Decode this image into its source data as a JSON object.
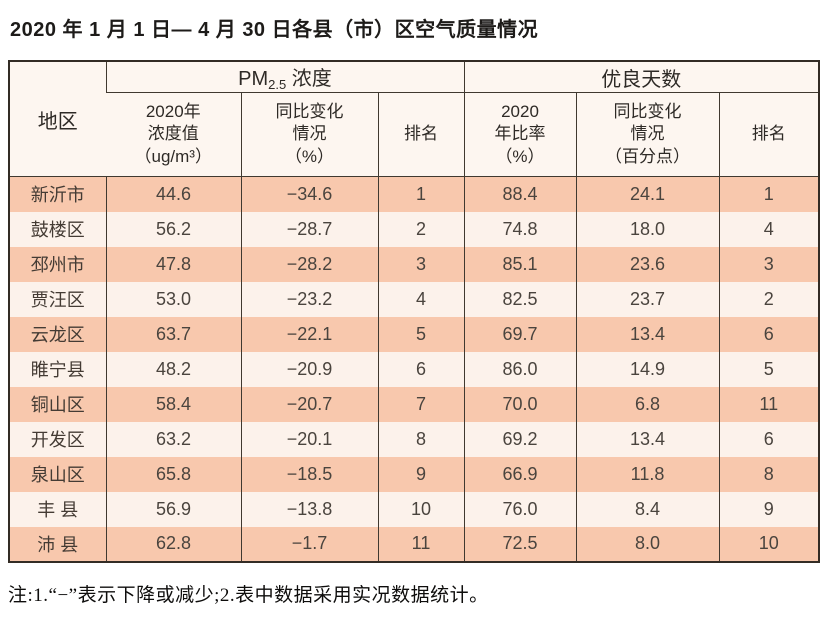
{
  "page": {
    "title": "2020 年 1 月 1 日— 4 月 30 日各县（市）区空气质量情况",
    "footnote": "注:1.“−”表示下降或减少;2.表中数据采用实况数据统计。"
  },
  "colors": {
    "row_odd": "#f8c8ad",
    "row_even": "#fcf2eb",
    "header_bg": "#fdf6f0",
    "border": "#332c25"
  },
  "table": {
    "region_header": "地区",
    "pm_group": {
      "prefix": "PM",
      "sub": "2.5",
      "suffix": " 浓度"
    },
    "good_group": "优良天数",
    "subheaders": {
      "pm_value": "2020年\n浓度值\n（ug/m³）",
      "pm_change": "同比变化\n情况\n（%）",
      "pm_rank": "排名",
      "ratio": "2020\n年比率\n（%）",
      "ratio_change": "同比变化\n情况\n（百分点）",
      "ratio_rank": "排名"
    },
    "rows": [
      {
        "region": "新沂市",
        "pm_value": "44.6",
        "pm_change": "−34.6",
        "pm_rank": "1",
        "ratio": "88.4",
        "ratio_change": "24.1",
        "ratio_rank": "1"
      },
      {
        "region": "鼓楼区",
        "pm_value": "56.2",
        "pm_change": "−28.7",
        "pm_rank": "2",
        "ratio": "74.8",
        "ratio_change": "18.0",
        "ratio_rank": "4"
      },
      {
        "region": "邳州市",
        "pm_value": "47.8",
        "pm_change": "−28.2",
        "pm_rank": "3",
        "ratio": "85.1",
        "ratio_change": "23.6",
        "ratio_rank": "3"
      },
      {
        "region": "贾汪区",
        "pm_value": "53.0",
        "pm_change": "−23.2",
        "pm_rank": "4",
        "ratio": "82.5",
        "ratio_change": "23.7",
        "ratio_rank": "2"
      },
      {
        "region": "云龙区",
        "pm_value": "63.7",
        "pm_change": "−22.1",
        "pm_rank": "5",
        "ratio": "69.7",
        "ratio_change": "13.4",
        "ratio_rank": "6"
      },
      {
        "region": "睢宁县",
        "pm_value": "48.2",
        "pm_change": "−20.9",
        "pm_rank": "6",
        "ratio": "86.0",
        "ratio_change": "14.9",
        "ratio_rank": "5"
      },
      {
        "region": "铜山区",
        "pm_value": "58.4",
        "pm_change": "−20.7",
        "pm_rank": "7",
        "ratio": "70.0",
        "ratio_change": "6.8",
        "ratio_rank": "11"
      },
      {
        "region": "开发区",
        "pm_value": "63.2",
        "pm_change": "−20.1",
        "pm_rank": "8",
        "ratio": "69.2",
        "ratio_change": "13.4",
        "ratio_rank": "6"
      },
      {
        "region": "泉山区",
        "pm_value": "65.8",
        "pm_change": "−18.5",
        "pm_rank": "9",
        "ratio": "66.9",
        "ratio_change": "11.8",
        "ratio_rank": "8"
      },
      {
        "region": "丰 县",
        "pm_value": "56.9",
        "pm_change": "−13.8",
        "pm_rank": "10",
        "ratio": "76.0",
        "ratio_change": "8.4",
        "ratio_rank": "9"
      },
      {
        "region": "沛 县",
        "pm_value": "62.8",
        "pm_change": "−1.7",
        "pm_rank": "11",
        "ratio": "72.5",
        "ratio_change": "8.0",
        "ratio_rank": "10"
      }
    ]
  }
}
